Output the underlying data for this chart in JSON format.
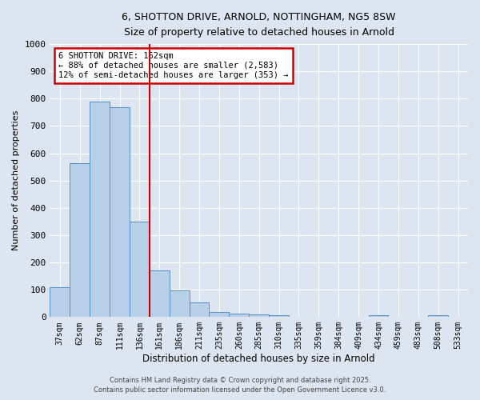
{
  "title_line1": "6, SHOTTON DRIVE, ARNOLD, NOTTINGHAM, NG5 8SW",
  "title_line2": "Size of property relative to detached houses in Arnold",
  "xlabel": "Distribution of detached houses by size in Arnold",
  "ylabel": "Number of detached properties",
  "bar_labels": [
    "37sqm",
    "62sqm",
    "87sqm",
    "111sqm",
    "136sqm",
    "161sqm",
    "186sqm",
    "211sqm",
    "235sqm",
    "260sqm",
    "285sqm",
    "310sqm",
    "335sqm",
    "359sqm",
    "384sqm",
    "409sqm",
    "434sqm",
    "459sqm",
    "483sqm",
    "508sqm",
    "533sqm"
  ],
  "bar_values": [
    110,
    565,
    790,
    770,
    350,
    170,
    97,
    53,
    18,
    12,
    10,
    7,
    0,
    0,
    0,
    0,
    6,
    0,
    0,
    6,
    0
  ],
  "bar_color": "#b8cfe8",
  "bar_edge_color": "#5590c8",
  "vline_x": 5,
  "vline_color": "#cc0000",
  "annotation_text": "6 SHOTTON DRIVE: 162sqm\n← 88% of detached houses are smaller (2,583)\n12% of semi-detached houses are larger (353) →",
  "annotation_box_color": "#ffffff",
  "annotation_box_edge": "#cc0000",
  "ylim": [
    0,
    1000
  ],
  "yticks": [
    0,
    100,
    200,
    300,
    400,
    500,
    600,
    700,
    800,
    900,
    1000
  ],
  "background_color": "#dde5f0",
  "grid_color": "#ffffff",
  "footer_line1": "Contains HM Land Registry data © Crown copyright and database right 2025.",
  "footer_line2": "Contains public sector information licensed under the Open Government Licence v3.0."
}
